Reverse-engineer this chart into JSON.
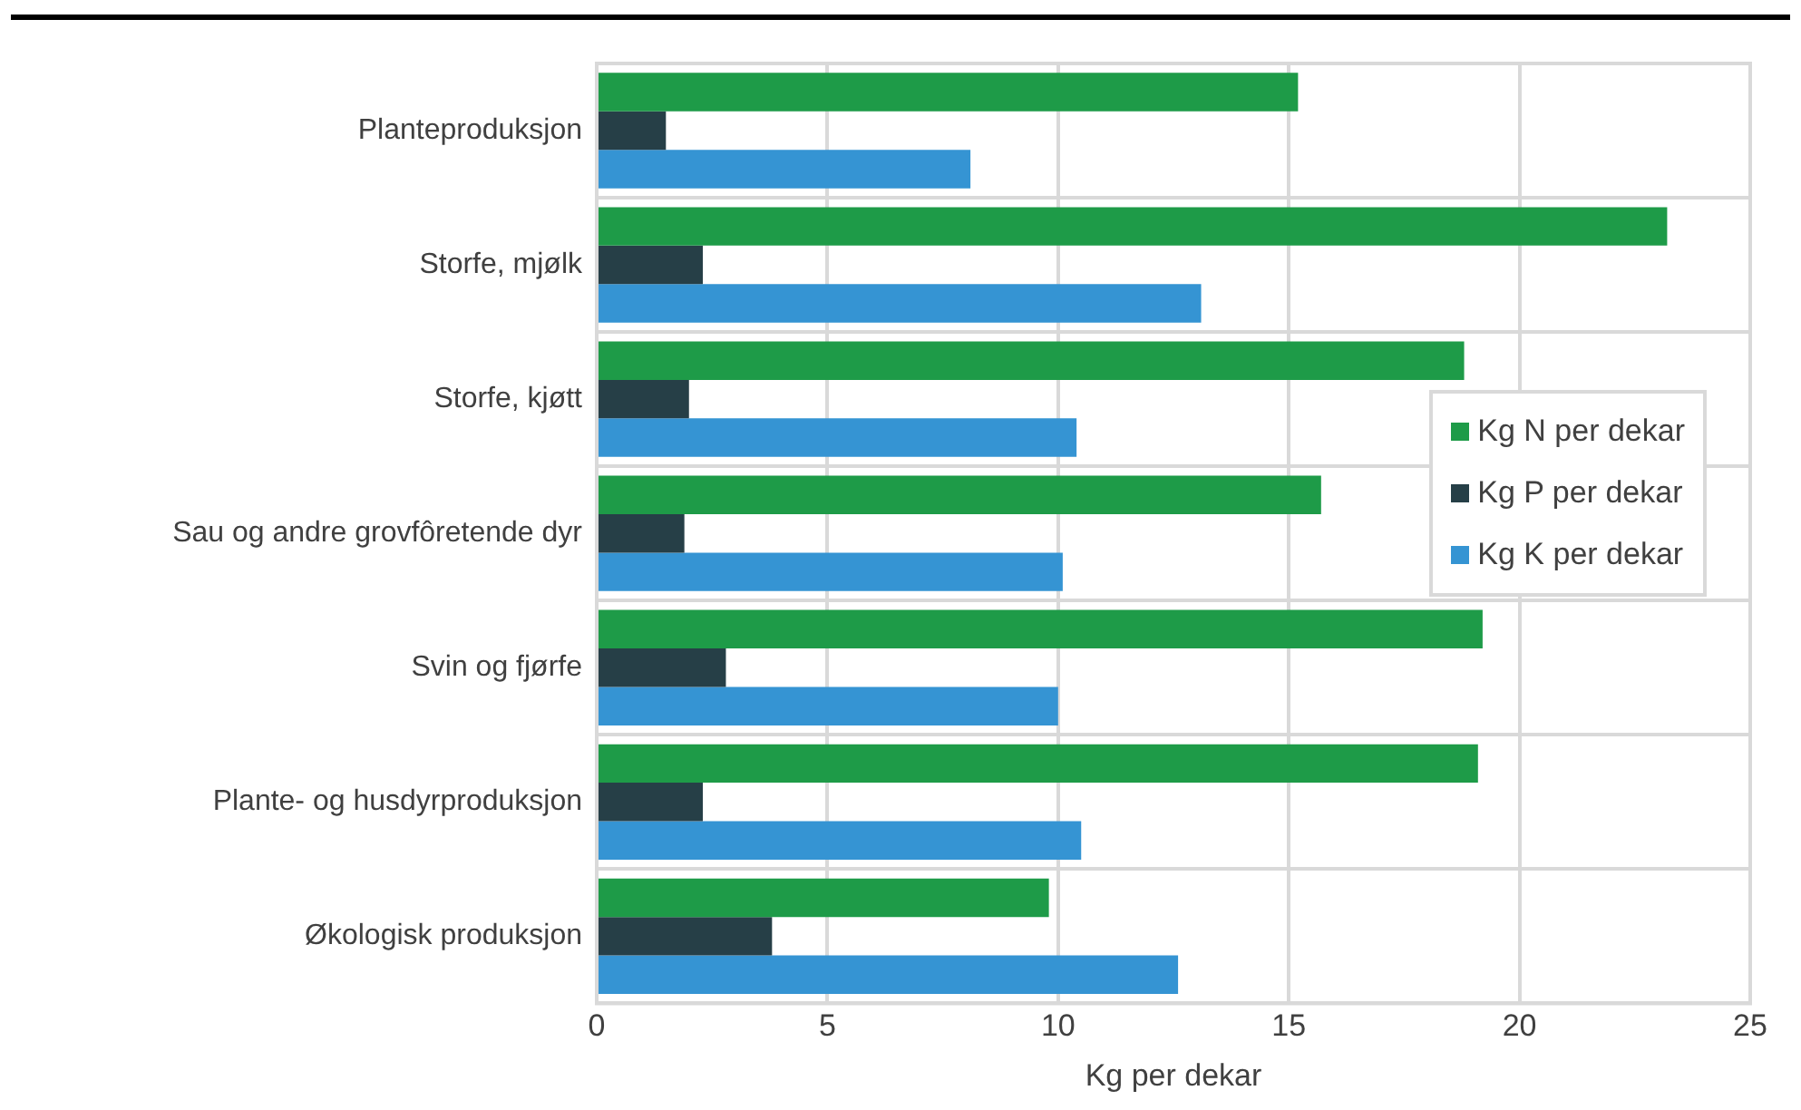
{
  "chart_data": {
    "type": "bar",
    "orientation": "horizontal",
    "xlabel": "Kg per dekar",
    "categories": [
      "Planteproduksjon",
      "Storfe, mjølk",
      "Storfe, kjøtt",
      "Sau og andre grovfôretende dyr",
      "Svin og fjørfe",
      "Plante- og husdyrproduksjon",
      "Økologisk produksjon"
    ],
    "series": [
      {
        "name": "Kg N per dekar",
        "color": "#1e9b48",
        "values": [
          15.2,
          23.2,
          18.8,
          15.7,
          19.2,
          19.1,
          9.8
        ]
      },
      {
        "name": "Kg P per dekar",
        "color": "#263f47",
        "values": [
          1.5,
          2.3,
          2.0,
          1.9,
          2.8,
          2.3,
          3.8
        ]
      },
      {
        "name": "Kg K per dekar",
        "color": "#3594d3",
        "values": [
          8.1,
          13.1,
          10.4,
          10.1,
          10.0,
          10.5,
          12.6
        ]
      }
    ],
    "xlim": [
      0,
      25
    ],
    "xticks": [
      0,
      5,
      10,
      15,
      20,
      25
    ],
    "grid": true,
    "legend": "right"
  }
}
